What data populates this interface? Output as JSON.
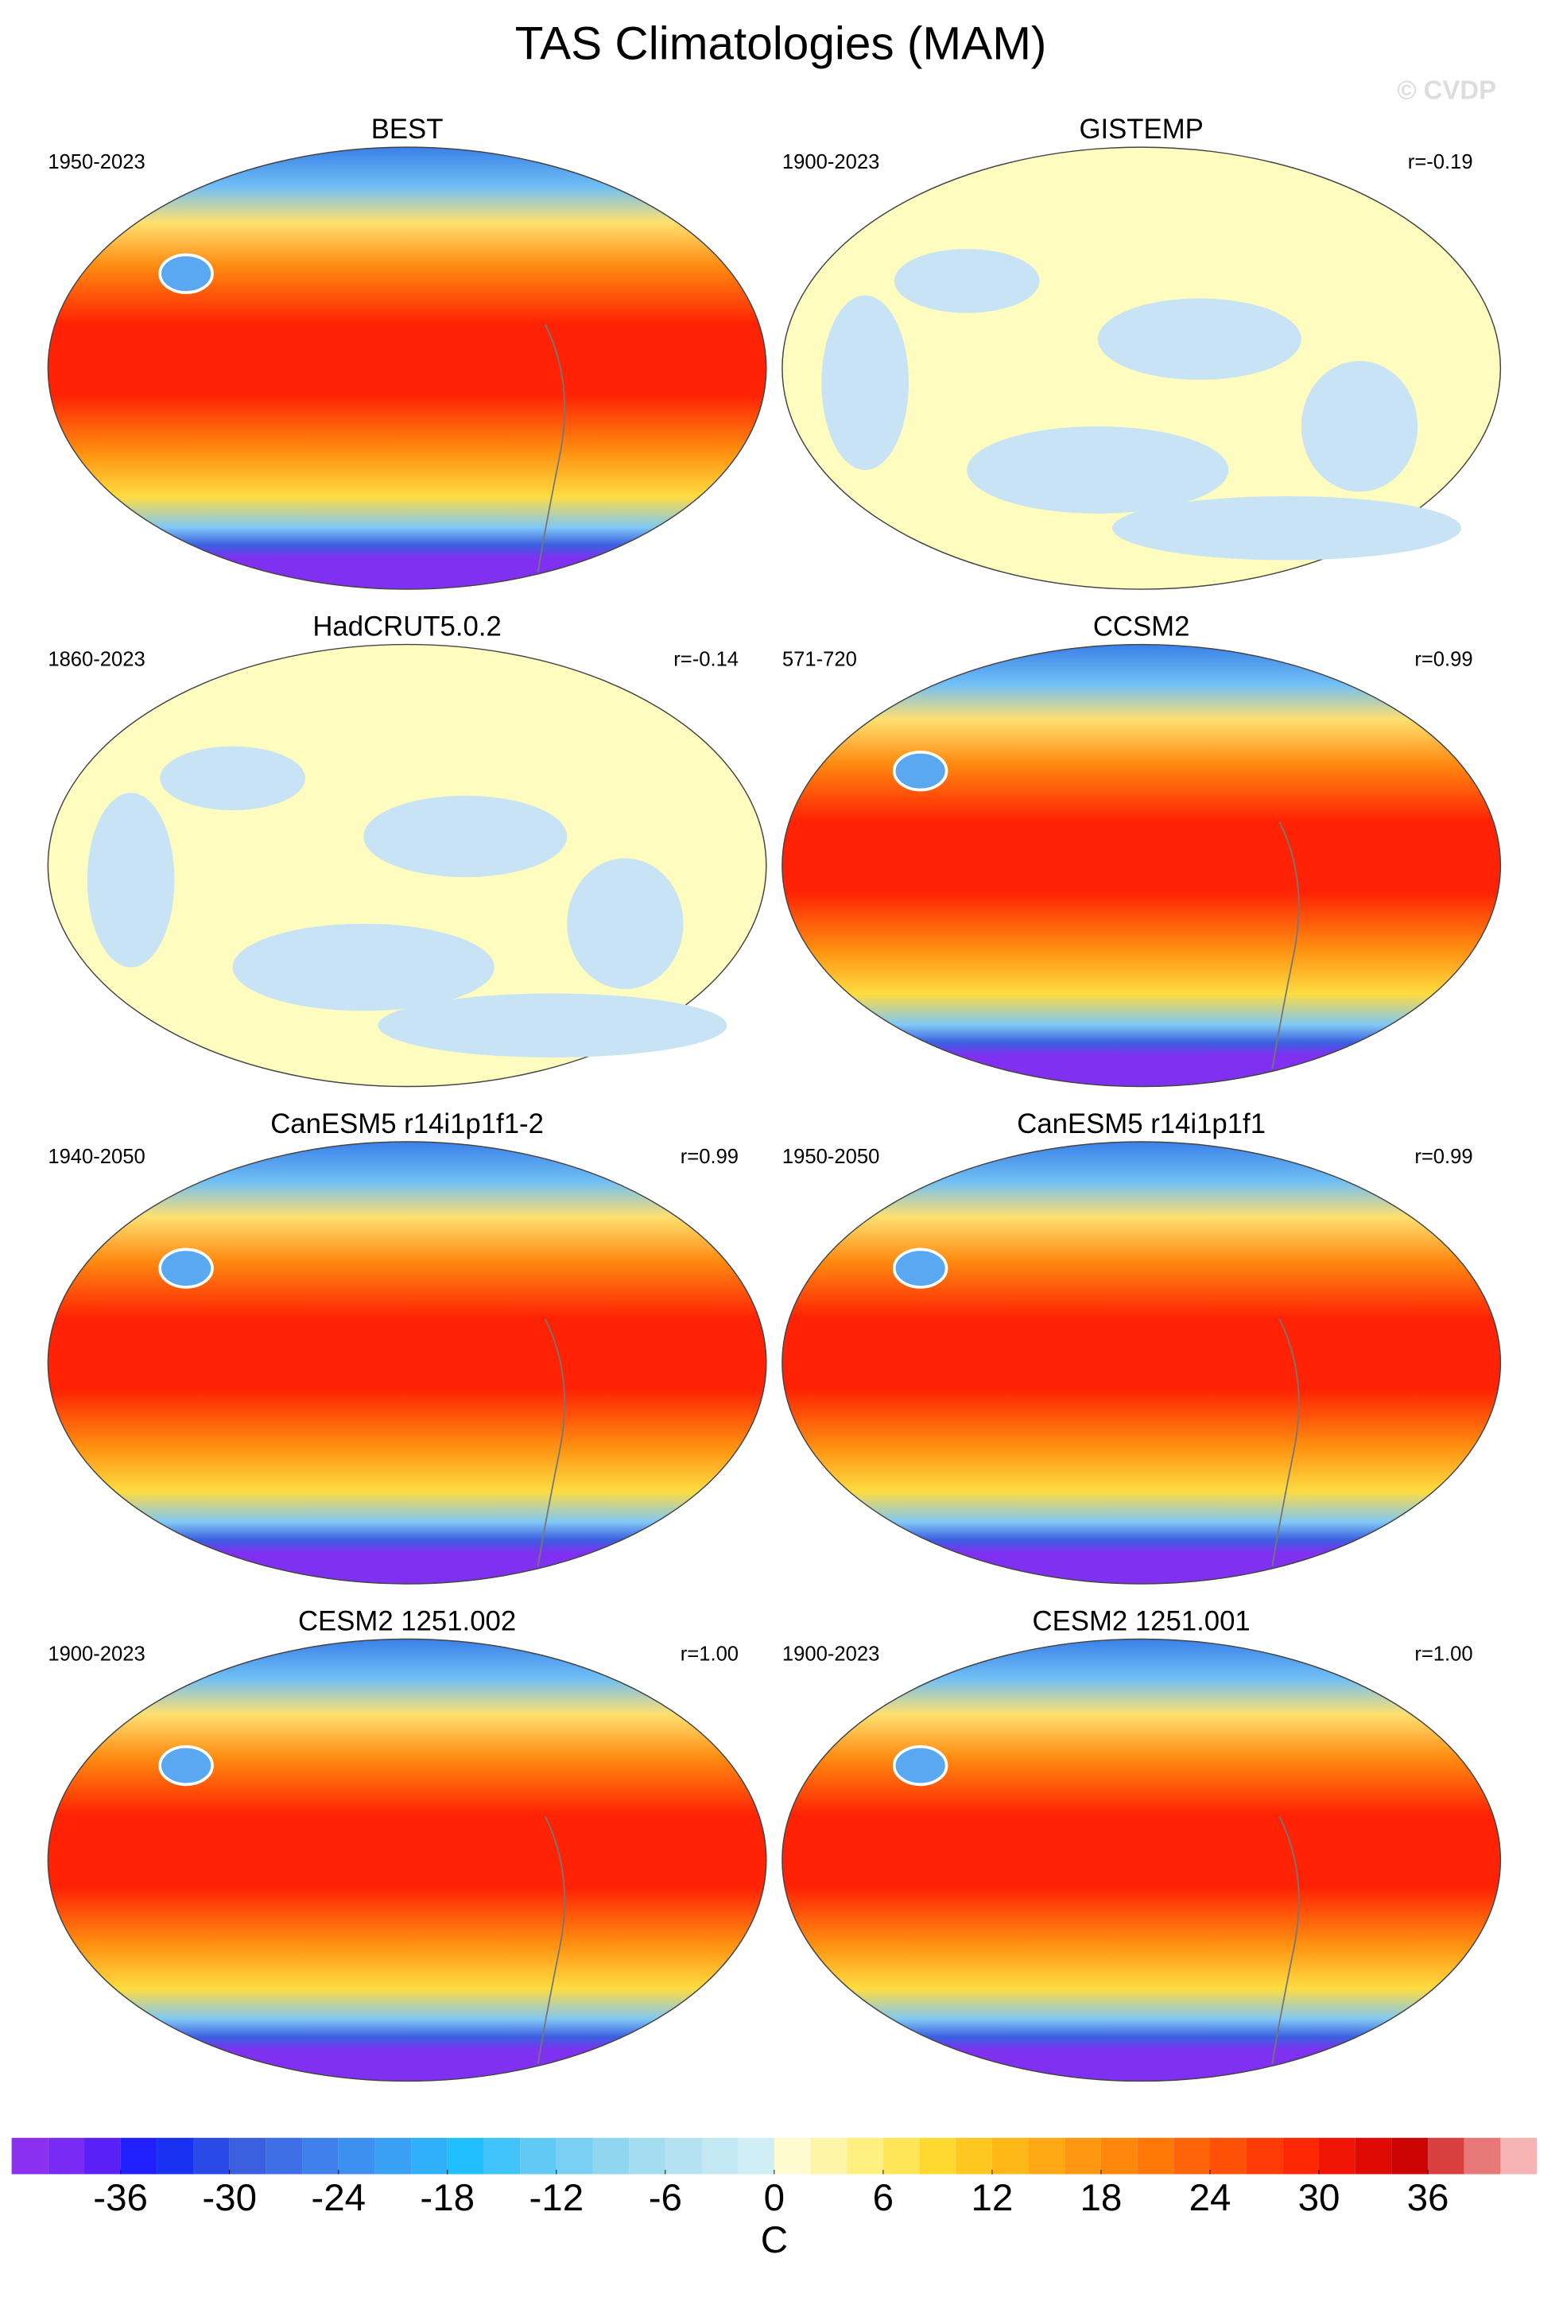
{
  "title": "TAS Climatologies (MAM)",
  "watermark": "© CVDP",
  "panels": [
    {
      "title": "BEST",
      "period": "1950-2023"
    },
    {
      "title": "GISTEMP",
      "period": "1900-2023",
      "r": "r=-0.19"
    },
    {
      "title": "HadCRUT5.0.2",
      "period": "1860-2023",
      "r": "r=-0.14"
    },
    {
      "title": "CCSM2",
      "period": "571-720",
      "r": "r=0.99"
    },
    {
      "title": "CanESM5 r14i1p1f1-2",
      "period": "1940-2050",
      "r": "r=0.99"
    },
    {
      "title": "CanESM5 r14i1p1f1",
      "period": "1950-2050",
      "r": "r=0.99"
    },
    {
      "title": "CESM2 1251.002",
      "period": "1900-2023",
      "r": "r=1.00"
    },
    {
      "title": "CESM2 1251.001",
      "period": "1900-2023",
      "r": "r=1.00"
    }
  ],
  "colorbar": {
    "lim": [
      -42,
      42
    ],
    "ticks": [
      -36,
      -30,
      -24,
      -18,
      -12,
      -6,
      0,
      6,
      12,
      18,
      24,
      30,
      36
    ],
    "label": "C",
    "colors": [
      "#8b2ff0",
      "#7a2af5",
      "#5a20f5",
      "#2020ff",
      "#1830f0",
      "#2a4ae8",
      "#3a60e0",
      "#3f6fe6",
      "#4080ec",
      "#3d90f0",
      "#3aa0f5",
      "#30b0fa",
      "#20c0ff",
      "#40c4fa",
      "#60caf5",
      "#7ad0f2",
      "#90d6f0",
      "#a4dcf0",
      "#b4e2f2",
      "#c2e8f4",
      "#d0eef6",
      "#fffbd0",
      "#fff5a8",
      "#fff080",
      "#ffe658",
      "#ffd830",
      "#ffc820",
      "#ffb818",
      "#ffa814",
      "#ff9810",
      "#ff880c",
      "#ff7808",
      "#ff6408",
      "#ff5008",
      "#ff3c06",
      "#ff2804",
      "#f01404",
      "#e00a04",
      "#cc0404",
      "#d84040",
      "#e87878",
      "#f6b4b4"
    ]
  }
}
